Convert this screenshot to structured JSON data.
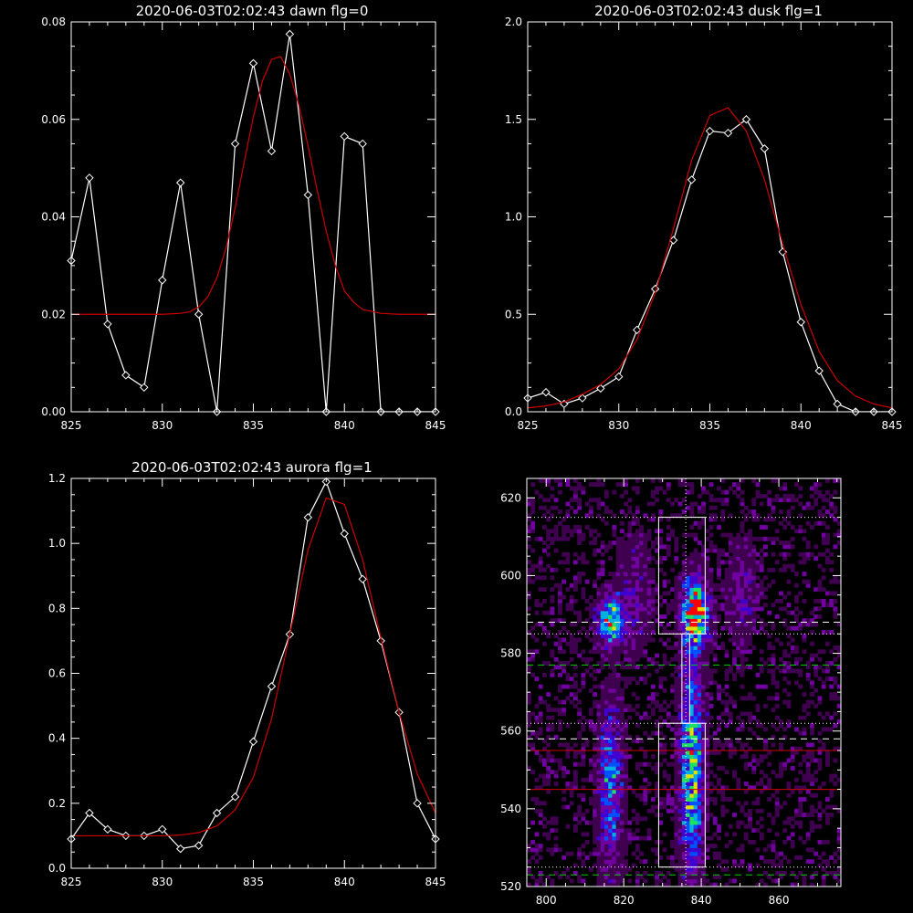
{
  "chart_data": [
    {
      "type": "line",
      "title": "2020-06-03T02:02:43 dawn flg=0",
      "xlim": [
        825,
        845
      ],
      "ylim": [
        0,
        0.08
      ],
      "xticks": [
        "825",
        "830",
        "835",
        "840",
        "845"
      ],
      "yticks": [
        "0.00",
        "0.02",
        "0.04",
        "0.06",
        "0.08"
      ],
      "series": [
        {
          "color": "#ffffff",
          "marker": "diamond",
          "x": [
            825,
            826,
            827,
            828,
            829,
            830,
            831,
            832,
            833,
            834,
            835,
            836,
            837,
            838,
            839,
            840,
            841,
            842,
            843,
            844,
            845
          ],
          "y": [
            0.031,
            0.048,
            0.018,
            0.0075,
            0.005,
            0.027,
            0.047,
            0.02,
            0.0,
            0.055,
            0.0715,
            0.0535,
            0.0775,
            0.0445,
            0.0,
            0.0565,
            0.055,
            0.0,
            0.0,
            0.0,
            0.0
          ]
        },
        {
          "color": "#cc0000",
          "x": [
            825,
            826,
            827,
            828,
            829,
            830,
            831,
            831.5,
            832,
            832.5,
            833,
            833.5,
            834,
            834.5,
            835,
            835.5,
            836,
            836.5,
            837,
            837.5,
            838,
            838.5,
            839,
            839.5,
            840,
            840.5,
            841,
            842,
            843,
            844,
            845
          ],
          "y": [
            0.02,
            0.02,
            0.02,
            0.02,
            0.02,
            0.02,
            0.0202,
            0.0205,
            0.0215,
            0.0236,
            0.0275,
            0.0336,
            0.0418,
            0.0513,
            0.0605,
            0.0679,
            0.0723,
            0.0729,
            0.0693,
            0.0629,
            0.0546,
            0.0455,
            0.0371,
            0.03,
            0.0248,
            0.0225,
            0.021,
            0.0202,
            0.02,
            0.02,
            0.02
          ]
        }
      ]
    },
    {
      "type": "line",
      "title": "2020-06-03T02:02:43 dusk flg=1",
      "xlim": [
        825,
        845
      ],
      "ylim": [
        0,
        2.0
      ],
      "xticks": [
        "825",
        "830",
        "835",
        "840",
        "845"
      ],
      "yticks": [
        "0.0",
        "0.5",
        "1.0",
        "1.5",
        "2.0"
      ],
      "series": [
        {
          "color": "#ffffff",
          "marker": "diamond",
          "x": [
            825,
            826,
            827,
            828,
            829,
            830,
            831,
            832,
            833,
            834,
            835,
            836,
            837,
            838,
            839,
            840,
            841,
            842,
            843,
            844,
            845
          ],
          "y": [
            0.07,
            0.1,
            0.04,
            0.07,
            0.12,
            0.18,
            0.42,
            0.63,
            0.88,
            1.19,
            1.44,
            1.43,
            1.5,
            1.35,
            0.82,
            0.46,
            0.21,
            0.04,
            0.0,
            0.0,
            0.0
          ]
        },
        {
          "color": "#cc0000",
          "x": [
            825,
            826,
            827,
            828,
            829,
            830,
            831,
            832,
            833,
            834,
            835,
            836,
            837,
            838,
            839,
            840,
            841,
            842,
            843,
            844,
            845
          ],
          "y": [
            0.02,
            0.03,
            0.05,
            0.09,
            0.14,
            0.22,
            0.37,
            0.61,
            0.94,
            1.29,
            1.52,
            1.56,
            1.44,
            1.19,
            0.86,
            0.55,
            0.31,
            0.16,
            0.08,
            0.04,
            0.02
          ]
        }
      ]
    },
    {
      "type": "line",
      "title": "2020-06-03T02:02:43 aurora flg=1",
      "xlim": [
        825,
        845
      ],
      "ylim": [
        0,
        1.2
      ],
      "xticks": [
        "825",
        "830",
        "835",
        "840",
        "845"
      ],
      "yticks": [
        "0.0",
        "0.2",
        "0.4",
        "0.6",
        "0.8",
        "1.0",
        "1.2"
      ],
      "series": [
        {
          "color": "#ffffff",
          "marker": "diamond",
          "x": [
            825,
            826,
            827,
            828,
            829,
            830,
            831,
            832,
            833,
            834,
            835,
            836,
            837,
            838,
            839,
            840,
            841,
            842,
            843,
            844,
            845
          ],
          "y": [
            0.09,
            0.17,
            0.12,
            0.1,
            0.1,
            0.12,
            0.06,
            0.07,
            0.17,
            0.22,
            0.39,
            0.56,
            0.72,
            1.08,
            1.19,
            1.03,
            0.89,
            0.7,
            0.48,
            0.2,
            0.09
          ]
        },
        {
          "color": "#cc0000",
          "x": [
            825,
            826,
            827,
            828,
            829,
            830,
            831,
            832,
            833,
            834,
            835,
            836,
            837,
            838,
            839,
            840,
            841,
            842,
            843,
            844,
            845
          ],
          "y": [
            0.1,
            0.1,
            0.1,
            0.1,
            0.1,
            0.1,
            0.102,
            0.11,
            0.13,
            0.18,
            0.28,
            0.46,
            0.72,
            0.98,
            1.14,
            1.12,
            0.95,
            0.71,
            0.48,
            0.29,
            0.17
          ]
        }
      ]
    },
    {
      "type": "heatmap",
      "title": "",
      "xlim": [
        795,
        876
      ],
      "ylim": [
        520,
        625
      ],
      "xticks": [
        "800",
        "820",
        "840",
        "860"
      ],
      "yticks": [
        "520",
        "540",
        "560",
        "580",
        "600",
        "620"
      ],
      "colormap": [
        "#000000",
        "#400050",
        "#7000a0",
        "#4000d0",
        "#0050ff",
        "#00b0e0",
        "#20e060",
        "#e0e000",
        "#ff0000"
      ],
      "sources": [
        {
          "x": 816,
          "y": 588,
          "sx": 2.2,
          "sy": 4,
          "amp": 0.75
        },
        {
          "x": 816,
          "y": 545,
          "sx": 2.0,
          "sy": 14,
          "amp": 0.5
        },
        {
          "x": 838,
          "y": 590,
          "sx": 2.2,
          "sy": 6,
          "amp": 0.95
        },
        {
          "x": 837,
          "y": 550,
          "sx": 2.0,
          "sy": 18,
          "amp": 0.7
        },
        {
          "x": 850,
          "y": 595,
          "sx": 2.5,
          "sy": 8,
          "amp": 0.25
        },
        {
          "x": 822,
          "y": 595,
          "sx": 3,
          "sy": 10,
          "amp": 0.2
        }
      ],
      "boxes": [
        {
          "x": [
            829,
            841
          ],
          "y": [
            585,
            615
          ]
        },
        {
          "x": [
            829,
            841
          ],
          "y": [
            525,
            562
          ]
        },
        {
          "x": [
            835,
            837
          ],
          "y": [
            562,
            585
          ]
        }
      ],
      "vlines": [
        {
          "x": 836,
          "style": "dotted",
          "color": "#ffffff"
        }
      ],
      "hlines": [
        {
          "y": 615,
          "style": "dotted",
          "color": "#ffffff"
        },
        {
          "y": 588,
          "style": "dashed",
          "color": "#ffffff"
        },
        {
          "y": 585,
          "style": "dotted",
          "color": "#ffffff"
        },
        {
          "y": 577,
          "style": "dashed",
          "color": "#00cc00"
        },
        {
          "y": 562,
          "style": "dotted",
          "color": "#ffffff"
        },
        {
          "y": 558,
          "style": "dashed",
          "color": "#ffffff"
        },
        {
          "y": 555,
          "style": "solid",
          "color": "#cc0000"
        },
        {
          "y": 545,
          "style": "solid",
          "color": "#cc0000"
        },
        {
          "y": 525,
          "style": "dotted",
          "color": "#ffffff"
        },
        {
          "y": 523,
          "style": "dashed",
          "color": "#00cc00"
        }
      ]
    }
  ]
}
